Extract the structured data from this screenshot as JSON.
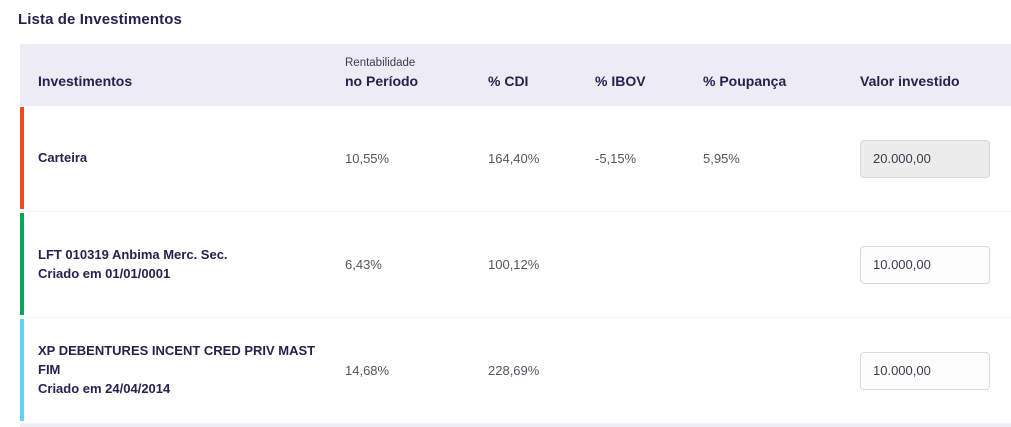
{
  "page": {
    "title": "Lista de Investimentos"
  },
  "table": {
    "columns": {
      "investments": "Investimentos",
      "rentability_top": "Rentabilidade",
      "rentability_bottom": "no Período",
      "cdi": "% CDI",
      "ibov": "% IBOV",
      "poupanca": "% Poupança",
      "valor": "Valor investido"
    },
    "rows": [
      {
        "name": "Carteira",
        "subtitle": "",
        "rentability": "10,55%",
        "cdi": "164,40%",
        "ibov": "-5,15%",
        "poupanca": "5,95%",
        "valor": "20.000,00",
        "accent_color": "#f04a23",
        "readonly": true
      },
      {
        "name": "LFT 010319 Anbima Merc. Sec.",
        "subtitle": "Criado em 01/01/0001",
        "rentability": "6,43%",
        "cdi": "100,12%",
        "ibov": "",
        "poupanca": "",
        "valor": "10.000,00",
        "accent_color": "#0ca35a",
        "readonly": false
      },
      {
        "name": "XP DEBENTURES INCENT CRED PRIV MAST FIM",
        "subtitle": "Criado em 24/04/2014",
        "rentability": "14,68%",
        "cdi": "228,69%",
        "ibov": "",
        "poupanca": "",
        "valor": "10.000,00",
        "accent_color": "#63cff3",
        "readonly": false
      }
    ]
  },
  "colors": {
    "header_background": "#edebf3",
    "heading_text": "#23234f",
    "value_text": "#55565c",
    "row1_accent": "#f04a23",
    "row2_accent": "#0ca35a",
    "row3_accent": "#63cff3"
  }
}
